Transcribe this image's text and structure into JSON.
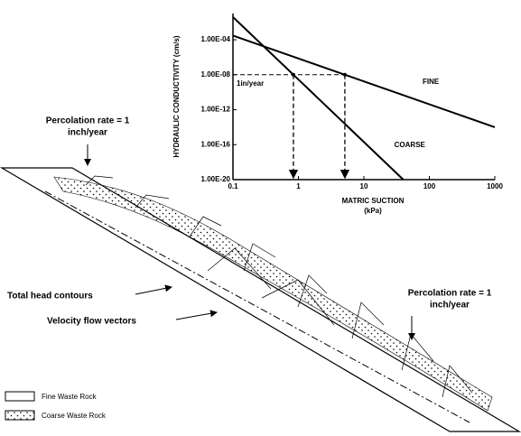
{
  "chart_data": {
    "type": "line",
    "log_x": true,
    "log_y": true,
    "y_label": "HYDRAULIC CONDUCTIVITY (cm/s)",
    "x_label": [
      "MATRIC SUCTION",
      "(kPa)"
    ],
    "xlim": [
      0.1,
      1000
    ],
    "xticks": [
      0.1,
      1,
      10,
      100,
      1000
    ],
    "ylim": [
      1e-20,
      0.1
    ],
    "yticks": [
      {
        "value": 0.0001,
        "label": "1.00E-04"
      },
      {
        "value": 1e-08,
        "label": "1.00E-08"
      },
      {
        "value": 1e-12,
        "label": "1.00E-12"
      },
      {
        "value": 1e-16,
        "label": "1.00E-16"
      },
      {
        "value": 1e-20,
        "label": "1.00E-20"
      }
    ],
    "series": [
      {
        "name": "FINE",
        "color": "#000000",
        "x": [
          0.1,
          1000
        ],
        "values": [
          0.0003,
          1e-14
        ]
      },
      {
        "name": "COARSE",
        "color": "#000000",
        "x": [
          0.1,
          40
        ],
        "values": [
          0.04,
          1e-20
        ]
      }
    ],
    "annotation": {
      "text": "1in/year",
      "value": 1e-08
    }
  },
  "diagram": {
    "percolation_top": [
      "Percolation rate = 1",
      "inch/year"
    ],
    "percolation_bottom": [
      "Percolation rate = 1",
      "inch/year"
    ],
    "head_contours": "Total head contours",
    "flow_vectors": "Velocity flow vectors",
    "legend": [
      "Fine Waste Rock",
      "Coarse Waste Rock"
    ]
  }
}
